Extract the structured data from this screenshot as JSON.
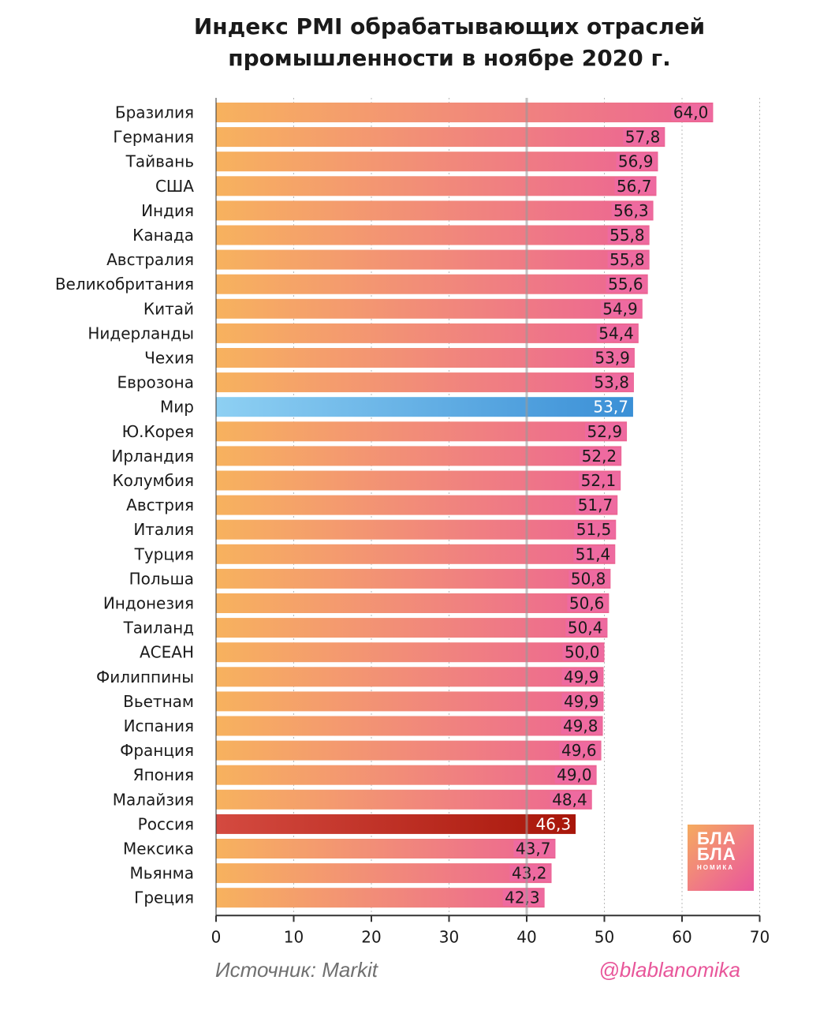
{
  "chart_data": {
    "type": "bar",
    "orientation": "horizontal",
    "title_line1": "Индекс PMI обрабатывающих отраслей",
    "title_line2": "промышленности в ноябре 2020 г.",
    "categories": [
      "Бразилия",
      "Германия",
      "Тайвань",
      "США",
      "Индия",
      "Канада",
      "Австралия",
      "Великобритания",
      "Китай",
      "Нидерланды",
      "Чехия",
      "Еврозона",
      "Мир",
      "Ю.Корея",
      "Ирландия",
      "Колумбия",
      "Австрия",
      "Италия",
      "Турция",
      "Польша",
      "Индонезия",
      "Таиланд",
      "АСЕАН",
      "Филиппины",
      "Вьетнам",
      "Испания",
      "Франция",
      "Япония",
      "Малайзия",
      "Россия",
      "Мексика",
      "Мьянма",
      "Греция"
    ],
    "values": [
      64.0,
      57.8,
      56.9,
      56.7,
      56.3,
      55.8,
      55.8,
      55.6,
      54.9,
      54.4,
      53.9,
      53.8,
      53.7,
      52.9,
      52.2,
      52.1,
      51.7,
      51.5,
      51.4,
      50.8,
      50.6,
      50.4,
      50.0,
      49.9,
      49.9,
      49.8,
      49.6,
      49.0,
      48.4,
      46.3,
      43.7,
      43.2,
      42.3
    ],
    "value_labels": [
      "64,0",
      "57,8",
      "56,9",
      "56,7",
      "56,3",
      "55,8",
      "55,8",
      "55,6",
      "54,9",
      "54,4",
      "53,9",
      "53,8",
      "53,7",
      "52,9",
      "52,2",
      "52,1",
      "51,7",
      "51,5",
      "51,4",
      "50,8",
      "50,6",
      "50,4",
      "50,0",
      "49,9",
      "49,9",
      "49,8",
      "49,6",
      "49,0",
      "48,4",
      "46,3",
      "43,7",
      "43,2",
      "42,3"
    ],
    "highlights": {
      "Мир": "blue",
      "Россия": "red"
    },
    "xlim": [
      0,
      70
    ],
    "xticks": [
      0,
      10,
      20,
      30,
      40,
      50,
      60,
      70
    ],
    "reference_line": 40,
    "grid": true
  },
  "colors": {
    "bar_start": "#f7b25e",
    "bar_end": "#ec6494",
    "blue_start": "#8ed0f3",
    "blue_end": "#3a8fd6",
    "red_start": "#d44a40",
    "red_end": "#a8160a",
    "label_bg": "#ee6aa0"
  },
  "footer": {
    "source": "Источник: Markit",
    "handle": "@blablanomika"
  },
  "logo": {
    "line1": "БЛА",
    "line2": "БЛА",
    "line3": "НОМИКА"
  }
}
